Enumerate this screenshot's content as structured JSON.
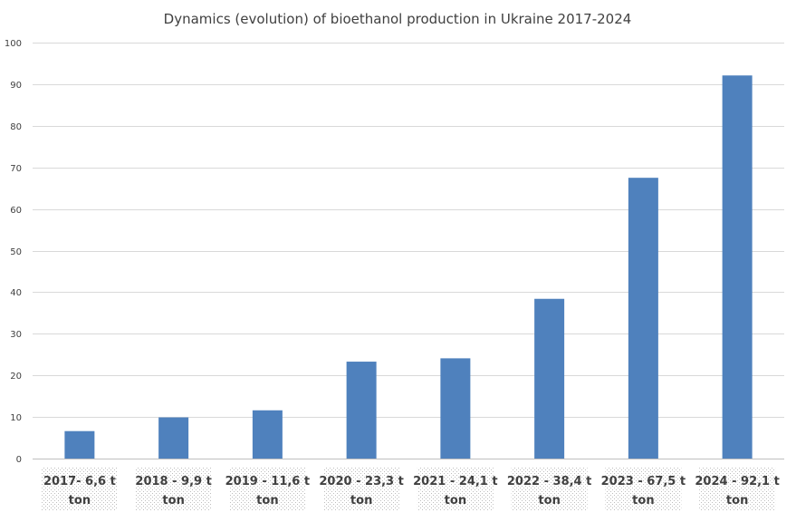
{
  "chart_data": {
    "type": "bar",
    "title": "Dynamics (evolution) of bioethanol production in Ukraine 2017-2024",
    "xlabel": "",
    "ylabel": "",
    "ylim": [
      0,
      100
    ],
    "yticks": [
      0,
      10,
      20,
      30,
      40,
      50,
      60,
      70,
      80,
      90,
      100
    ],
    "grid": true,
    "bar_color": "#4f81bd",
    "categories": [
      [
        "2017- 6,6 t",
        "ton"
      ],
      [
        "2018 - 9,9 t",
        "ton"
      ],
      [
        "2019 - 11,6 t",
        "ton"
      ],
      [
        "2020 - 23,3 t",
        "ton"
      ],
      [
        "2021 - 24,1 t",
        "ton"
      ],
      [
        "2022 - 38,4 t",
        "ton"
      ],
      [
        "2023 - 67,5 t",
        "ton"
      ],
      [
        "2024 - 92,1 t",
        "ton"
      ]
    ],
    "values": [
      6.6,
      9.9,
      11.6,
      23.3,
      24.1,
      38.4,
      67.5,
      92.1
    ]
  }
}
